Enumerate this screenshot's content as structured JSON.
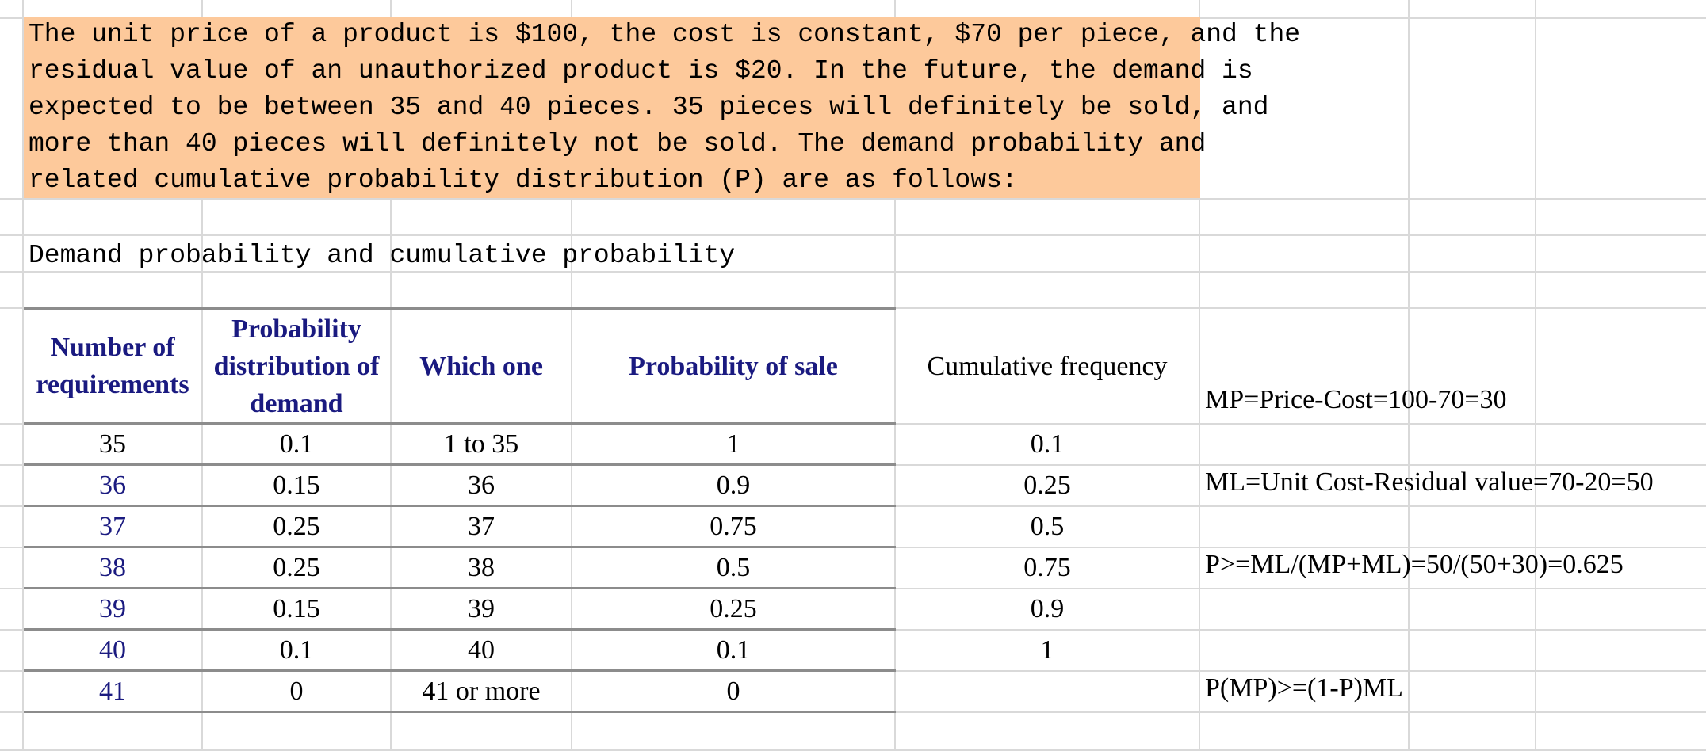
{
  "description": {
    "lines": [
      "The unit price of a product is $100, the cost is constant, $70 per piece, and the",
      "residual value of an unauthorized product is $20. In the future, the demand is",
      "expected to be between 35 and 40 pieces. 35 pieces will definitely be sold, and",
      "more than 40 pieces will definitely not be sold. The demand probability and",
      "related cumulative probability distribution (P) are as follows:"
    ],
    "fill_color": "#fdc99b"
  },
  "caption": "Demand probability and cumulative probability",
  "table": {
    "headers": [
      "Number of requirements",
      "Probability distribution of demand",
      "Which one",
      "Probability of sale",
      "Cumulative frequency"
    ],
    "rows": [
      [
        "35",
        "0.1",
        "1 to 35",
        "1",
        "0.1"
      ],
      [
        "36",
        "0.15",
        "36",
        "0.9",
        "0.25"
      ],
      [
        "37",
        "0.25",
        "37",
        "0.75",
        "0.5"
      ],
      [
        "38",
        "0.25",
        "38",
        "0.5",
        "0.75"
      ],
      [
        "39",
        "0.15",
        "39",
        "0.25",
        "0.9"
      ],
      [
        "40",
        "0.1",
        "40",
        "0.1",
        "1"
      ],
      [
        "41",
        "0",
        "41 or more",
        "0",
        ""
      ]
    ],
    "header_color": "#1a1a80"
  },
  "notes": {
    "mp": "MP=Price-Cost=100-70=30",
    "ml": "ML=Unit Cost-Residual value=70-20=50",
    "p": "P>=ML/(MP+ML)=50/(50+30)=0.625",
    "inequality": "P(MP)>=(1-P)ML"
  }
}
